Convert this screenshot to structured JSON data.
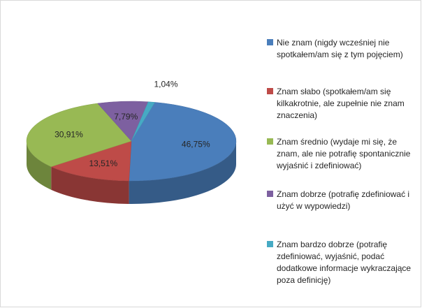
{
  "chart_data": {
    "type": "pie",
    "style": "3d",
    "title": "",
    "categories": [
      "Nie znam (nigdy wcześniej nie spotkałem/am się z tym pojęciem)",
      "Znam słabo (spotkałem/am się kilkakrotnie, ale zupełnie nie znam znaczenia)",
      "Znam średnio (wydaje mi się, że znam, ale nie potrafię spontanicznie wyjaśnić i zdefiniować)",
      "Znam dobrze (potrafię zdefiniować i użyć w wypowiedzi)",
      "Znam bardzo dobrze (potrafię zdefiniować, wyjaśnić, podać dodatkowe informacje wykraczające poza definicję)"
    ],
    "values": [
      46.75,
      13.51,
      30.91,
      7.79,
      1.04
    ],
    "labels": [
      "46,75%",
      "13,51%",
      "30,91%",
      "7,79%",
      "1,04%"
    ],
    "colors": [
      "#4a7ebb",
      "#be4b48",
      "#98b954",
      "#7d60a0",
      "#46aac4"
    ],
    "legend_position": "right"
  }
}
